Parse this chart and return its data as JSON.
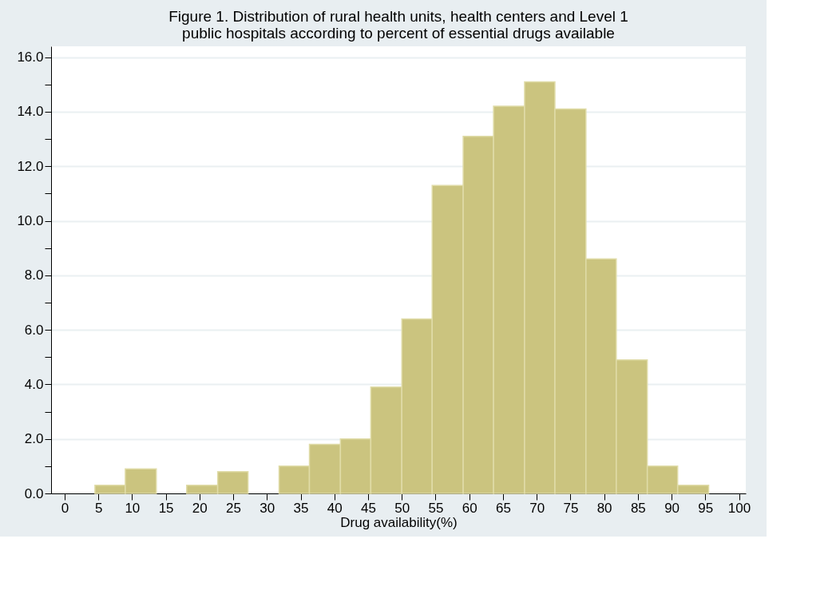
{
  "chart_data": {
    "type": "histogram",
    "title": "Figure 1.  Distribution of rural health units, health centers and Level 1\npublic hospitals according to percent of essential drugs available",
    "xlabel": "Drug availability(%)",
    "bins": [
      4.5,
      9.0,
      13.6,
      18.1,
      22.7,
      27.2,
      31.8,
      36.3,
      40.9,
      45.4,
      50.0,
      54.5,
      59.1,
      63.6,
      68.2,
      72.7,
      77.3,
      81.8,
      86.4,
      90.9,
      95.5
    ],
    "values": [
      0.3,
      0.9,
      0,
      0.3,
      0.8,
      0,
      1.0,
      1.8,
      2.0,
      3.9,
      6.4,
      11.3,
      13.1,
      14.2,
      15.1,
      14.1,
      8.6,
      4.9,
      1.0,
      0.3
    ],
    "color": "#cbc47f",
    "xlim": [
      -2,
      101
    ],
    "xticks": [
      0,
      5,
      10,
      15,
      20,
      25,
      30,
      35,
      40,
      45,
      50,
      55,
      60,
      65,
      70,
      75,
      80,
      85,
      90,
      95,
      100
    ],
    "ylim": [
      0,
      16.4
    ],
    "yticks": [
      {
        "value": 0,
        "label": "0.0"
      },
      {
        "value": 1,
        "label": null
      },
      {
        "value": 2,
        "label": "2.0"
      },
      {
        "value": 3,
        "label": null
      },
      {
        "value": 4,
        "label": "4.0"
      },
      {
        "value": 5,
        "label": null
      },
      {
        "value": 6,
        "label": "6.0"
      },
      {
        "value": 7,
        "label": null
      },
      {
        "value": 8,
        "label": "8.0"
      },
      {
        "value": 9,
        "label": null
      },
      {
        "value": 10,
        "label": "10.0"
      },
      {
        "value": 11,
        "label": null
      },
      {
        "value": 12,
        "label": "12.0"
      },
      {
        "value": 13,
        "label": null
      },
      {
        "value": 14,
        "label": "14.0"
      },
      {
        "value": 15,
        "label": null
      },
      {
        "value": 16,
        "label": "16.0"
      }
    ],
    "grid": "y"
  }
}
